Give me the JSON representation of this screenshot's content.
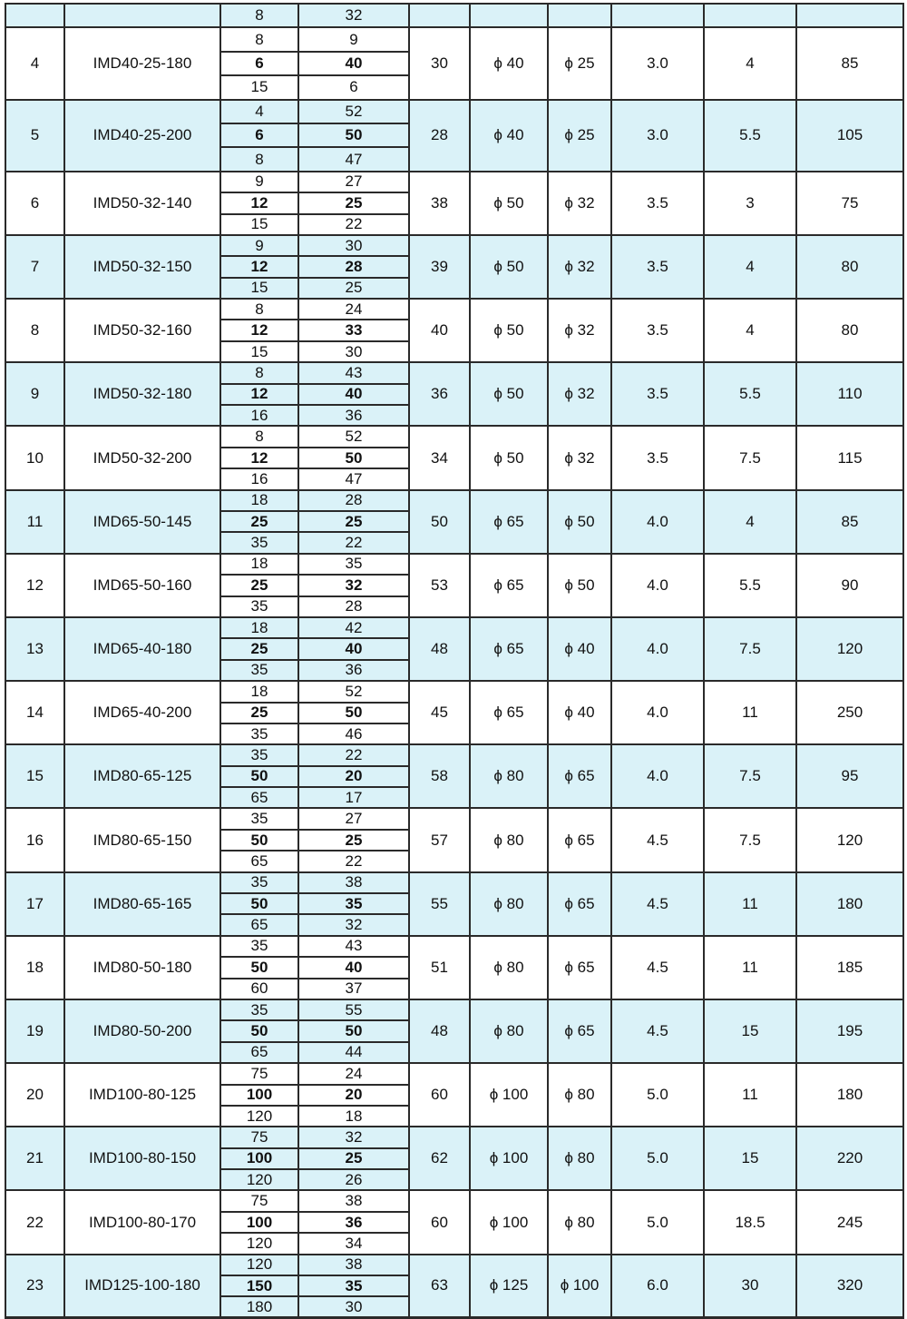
{
  "shade_color": "#daf2f8",
  "border_color": "#2a2a2a",
  "table": {
    "partial_top_row": {
      "flow": "8",
      "head": "32",
      "shaded": true
    },
    "rows": [
      {
        "no": "4",
        "model": "IMD40-25-180",
        "points": [
          [
            "8",
            "9"
          ],
          [
            "6",
            "40"
          ],
          [
            "15",
            "6"
          ]
        ],
        "eff": "30",
        "inlet": "ϕ 40",
        "outlet": "ϕ 25",
        "npsh": "3.0",
        "power": "4",
        "weight": "85",
        "shaded": false
      },
      {
        "no": "5",
        "model": "IMD40-25-200",
        "points": [
          [
            "4",
            "52"
          ],
          [
            "6",
            "50"
          ],
          [
            "8",
            "47"
          ]
        ],
        "eff": "28",
        "inlet": "ϕ 40",
        "outlet": "ϕ 25",
        "npsh": "3.0",
        "power": "5.5",
        "weight": "105",
        "shaded": true
      },
      {
        "no": "6",
        "model": "IMD50-32-140",
        "points": [
          [
            "9",
            "27"
          ],
          [
            "12",
            "25"
          ],
          [
            "15",
            "22"
          ]
        ],
        "eff": "38",
        "inlet": "ϕ 50",
        "outlet": "ϕ 32",
        "npsh": "3.5",
        "power": "3",
        "weight": "75",
        "shaded": false
      },
      {
        "no": "7",
        "model": "IMD50-32-150",
        "points": [
          [
            "9",
            "30"
          ],
          [
            "12",
            "28"
          ],
          [
            "15",
            "25"
          ]
        ],
        "eff": "39",
        "inlet": "ϕ 50",
        "outlet": "ϕ 32",
        "npsh": "3.5",
        "power": "4",
        "weight": "80",
        "shaded": true
      },
      {
        "no": "8",
        "model": "IMD50-32-160",
        "points": [
          [
            "8",
            "24"
          ],
          [
            "12",
            "33"
          ],
          [
            "15",
            "30"
          ]
        ],
        "eff": "40",
        "inlet": "ϕ 50",
        "outlet": "ϕ 32",
        "npsh": "3.5",
        "power": "4",
        "weight": "80",
        "shaded": false
      },
      {
        "no": "9",
        "model": "IMD50-32-180",
        "points": [
          [
            "8",
            "43"
          ],
          [
            "12",
            "40"
          ],
          [
            "16",
            "36"
          ]
        ],
        "eff": "36",
        "inlet": "ϕ 50",
        "outlet": "ϕ 32",
        "npsh": "3.5",
        "power": "5.5",
        "weight": "110",
        "shaded": true
      },
      {
        "no": "10",
        "model": "IMD50-32-200",
        "points": [
          [
            "8",
            "52"
          ],
          [
            "12",
            "50"
          ],
          [
            "16",
            "47"
          ]
        ],
        "eff": "34",
        "inlet": "ϕ 50",
        "outlet": "ϕ 32",
        "npsh": "3.5",
        "power": "7.5",
        "weight": "115",
        "shaded": false
      },
      {
        "no": "11",
        "model": "IMD65-50-145",
        "points": [
          [
            "18",
            "28"
          ],
          [
            "25",
            "25"
          ],
          [
            "35",
            "22"
          ]
        ],
        "eff": "50",
        "inlet": "ϕ 65",
        "outlet": "ϕ 50",
        "npsh": "4.0",
        "power": "4",
        "weight": "85",
        "shaded": true
      },
      {
        "no": "12",
        "model": "IMD65-50-160",
        "points": [
          [
            "18",
            "35"
          ],
          [
            "25",
            "32"
          ],
          [
            "35",
            "28"
          ]
        ],
        "eff": "53",
        "inlet": "ϕ 65",
        "outlet": "ϕ 50",
        "npsh": "4.0",
        "power": "5.5",
        "weight": "90",
        "shaded": false
      },
      {
        "no": "13",
        "model": "IMD65-40-180",
        "points": [
          [
            "18",
            "42"
          ],
          [
            "25",
            "40"
          ],
          [
            "35",
            "36"
          ]
        ],
        "eff": "48",
        "inlet": "ϕ 65",
        "outlet": "ϕ 40",
        "npsh": "4.0",
        "power": "7.5",
        "weight": "120",
        "shaded": true
      },
      {
        "no": "14",
        "model": "IMD65-40-200",
        "points": [
          [
            "18",
            "52"
          ],
          [
            "25",
            "50"
          ],
          [
            "35",
            "46"
          ]
        ],
        "eff": "45",
        "inlet": "ϕ 65",
        "outlet": "ϕ 40",
        "npsh": "4.0",
        "power": "11",
        "weight": "250",
        "shaded": false
      },
      {
        "no": "15",
        "model": "IMD80-65-125",
        "points": [
          [
            "35",
            "22"
          ],
          [
            "50",
            "20"
          ],
          [
            "65",
            "17"
          ]
        ],
        "eff": "58",
        "inlet": "ϕ 80",
        "outlet": "ϕ 65",
        "npsh": "4.0",
        "power": "7.5",
        "weight": "95",
        "shaded": true
      },
      {
        "no": "16",
        "model": "IMD80-65-150",
        "points": [
          [
            "35",
            "27"
          ],
          [
            "50",
            "25"
          ],
          [
            "65",
            "22"
          ]
        ],
        "eff": "57",
        "inlet": "ϕ 80",
        "outlet": "ϕ 65",
        "npsh": "4.5",
        "power": "7.5",
        "weight": "120",
        "shaded": false
      },
      {
        "no": "17",
        "model": "IMD80-65-165",
        "points": [
          [
            "35",
            "38"
          ],
          [
            "50",
            "35"
          ],
          [
            "65",
            "32"
          ]
        ],
        "eff": "55",
        "inlet": "ϕ 80",
        "outlet": "ϕ 65",
        "npsh": "4.5",
        "power": "11",
        "weight": "180",
        "shaded": true
      },
      {
        "no": "18",
        "model": "IMD80-50-180",
        "points": [
          [
            "35",
            "43"
          ],
          [
            "50",
            "40"
          ],
          [
            "60",
            "37"
          ]
        ],
        "eff": "51",
        "inlet": "ϕ 80",
        "outlet": "ϕ 65",
        "npsh": "4.5",
        "power": "11",
        "weight": "185",
        "shaded": false,
        "right_join_below": true
      },
      {
        "no": "19",
        "model": "IMD80-50-200",
        "points": [
          [
            "35",
            "55"
          ],
          [
            "50",
            "50"
          ],
          [
            "65",
            "44"
          ]
        ],
        "eff": "48",
        "inlet": "ϕ 80",
        "outlet": "ϕ 65",
        "npsh": "4.5",
        "power": "15",
        "weight": "195",
        "shaded": true
      },
      {
        "no": "20",
        "model": "IMD100-80-125",
        "points": [
          [
            "75",
            "24"
          ],
          [
            "100",
            "20"
          ],
          [
            "120",
            "18"
          ]
        ],
        "eff": "60",
        "inlet": "ϕ 100",
        "outlet": "ϕ 80",
        "npsh": "5.0",
        "power": "11",
        "weight": "180",
        "shaded": false,
        "right_join_below": true
      },
      {
        "no": "21",
        "model": "IMD100-80-150",
        "points": [
          [
            "75",
            "32"
          ],
          [
            "100",
            "25"
          ],
          [
            "120",
            "26"
          ]
        ],
        "eff": "62",
        "inlet": "ϕ 100",
        "outlet": "ϕ 80",
        "npsh": "5.0",
        "power": "15",
        "weight": "220",
        "shaded": true
      },
      {
        "no": "22",
        "model": "IMD100-80-170",
        "points": [
          [
            "75",
            "38"
          ],
          [
            "100",
            "36"
          ],
          [
            "120",
            "34"
          ]
        ],
        "eff": "60",
        "inlet": "ϕ 100",
        "outlet": "ϕ 80",
        "npsh": "5.0",
        "power": "18.5",
        "weight": "245",
        "shaded": false,
        "right_join_below": true
      },
      {
        "no": "23",
        "model": "IMD125-100-180",
        "points": [
          [
            "120",
            "38"
          ],
          [
            "150",
            "35"
          ],
          [
            "180",
            "30"
          ]
        ],
        "eff": "63",
        "inlet": "ϕ 125",
        "outlet": "ϕ 100",
        "npsh": "6.0",
        "power": "30",
        "weight": "320",
        "shaded": true
      }
    ]
  }
}
